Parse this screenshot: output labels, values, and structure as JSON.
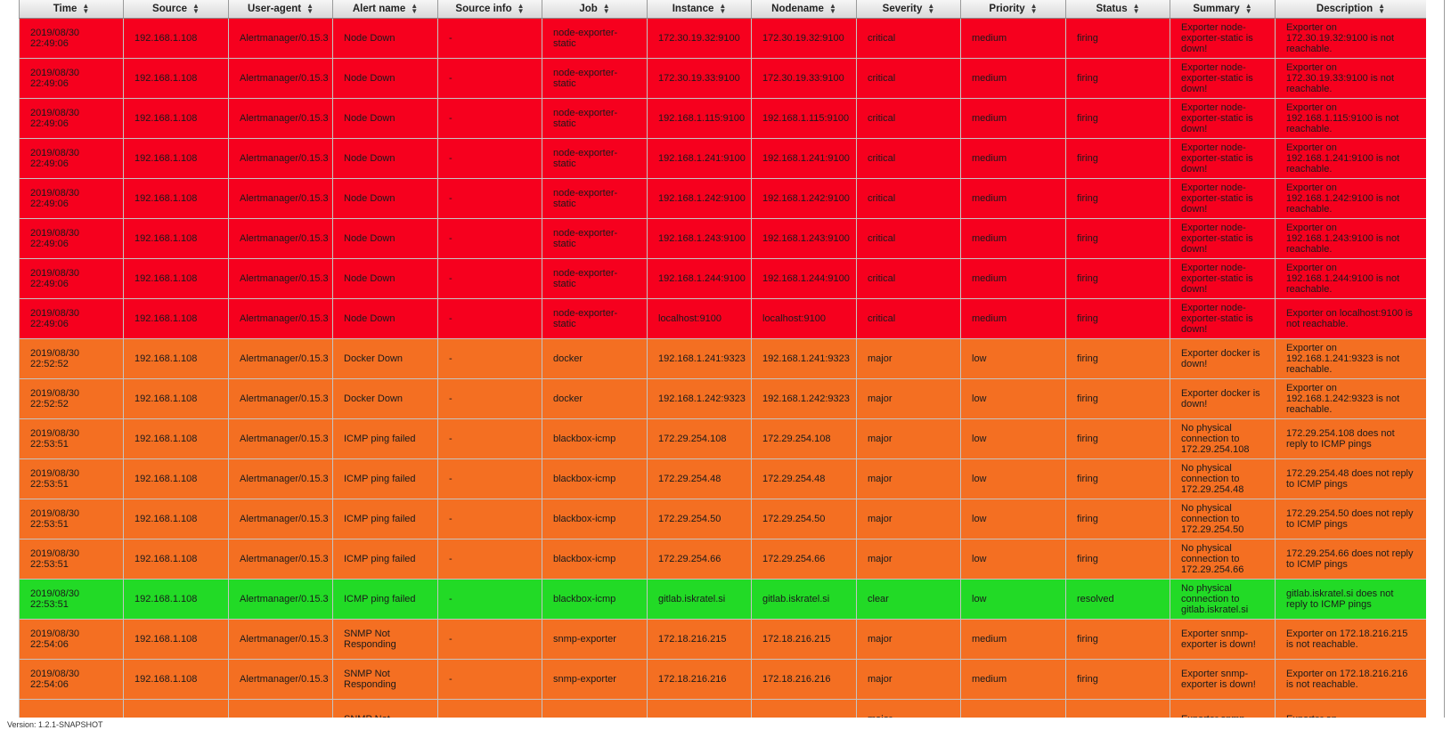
{
  "columns": [
    {
      "key": "time",
      "label": "Time"
    },
    {
      "key": "source",
      "label": "Source"
    },
    {
      "key": "user_agent",
      "label": "User-agent"
    },
    {
      "key": "alert_name",
      "label": "Alert name"
    },
    {
      "key": "source_info",
      "label": "Source info"
    },
    {
      "key": "job",
      "label": "Job"
    },
    {
      "key": "instance",
      "label": "Instance"
    },
    {
      "key": "nodename",
      "label": "Nodename"
    },
    {
      "key": "severity",
      "label": "Severity"
    },
    {
      "key": "priority",
      "label": "Priority"
    },
    {
      "key": "status",
      "label": "Status"
    },
    {
      "key": "summary",
      "label": "Summary"
    },
    {
      "key": "description",
      "label": "Description"
    }
  ],
  "severity_colors": {
    "critical": "#f6001e",
    "major": "#f46f22",
    "clear": "#22da26"
  },
  "rows": [
    {
      "time": "2019/08/30 22:49:06",
      "source": "192.168.1.108",
      "user_agent": "Alertmanager/0.15.3",
      "alert_name": "Node Down",
      "source_info": "-",
      "job": "node-exporter-static",
      "instance": "172.30.19.32:9100",
      "nodename": "172.30.19.32:9100",
      "severity": "critical",
      "priority": "medium",
      "status": "firing",
      "summary": "Exporter node-exporter-static is down!",
      "description": "Exporter on 172.30.19.32:9100 is not reachable."
    },
    {
      "time": "2019/08/30 22:49:06",
      "source": "192.168.1.108",
      "user_agent": "Alertmanager/0.15.3",
      "alert_name": "Node Down",
      "source_info": "-",
      "job": "node-exporter-static",
      "instance": "172.30.19.33:9100",
      "nodename": "172.30.19.33:9100",
      "severity": "critical",
      "priority": "medium",
      "status": "firing",
      "summary": "Exporter node-exporter-static is down!",
      "description": "Exporter on 172.30.19.33:9100 is not reachable."
    },
    {
      "time": "2019/08/30 22:49:06",
      "source": "192.168.1.108",
      "user_agent": "Alertmanager/0.15.3",
      "alert_name": "Node Down",
      "source_info": "-",
      "job": "node-exporter-static",
      "instance": "192.168.1.115:9100",
      "nodename": "192.168.1.115:9100",
      "severity": "critical",
      "priority": "medium",
      "status": "firing",
      "summary": "Exporter node-exporter-static is down!",
      "description": "Exporter on 192.168.1.115:9100 is not reachable."
    },
    {
      "time": "2019/08/30 22:49:06",
      "source": "192.168.1.108",
      "user_agent": "Alertmanager/0.15.3",
      "alert_name": "Node Down",
      "source_info": "-",
      "job": "node-exporter-static",
      "instance": "192.168.1.241:9100",
      "nodename": "192.168.1.241:9100",
      "severity": "critical",
      "priority": "medium",
      "status": "firing",
      "summary": "Exporter node-exporter-static is down!",
      "description": "Exporter on 192.168.1.241:9100 is not reachable."
    },
    {
      "time": "2019/08/30 22:49:06",
      "source": "192.168.1.108",
      "user_agent": "Alertmanager/0.15.3",
      "alert_name": "Node Down",
      "source_info": "-",
      "job": "node-exporter-static",
      "instance": "192.168.1.242:9100",
      "nodename": "192.168.1.242:9100",
      "severity": "critical",
      "priority": "medium",
      "status": "firing",
      "summary": "Exporter node-exporter-static is down!",
      "description": "Exporter on 192.168.1.242:9100 is not reachable."
    },
    {
      "time": "2019/08/30 22:49:06",
      "source": "192.168.1.108",
      "user_agent": "Alertmanager/0.15.3",
      "alert_name": "Node Down",
      "source_info": "-",
      "job": "node-exporter-static",
      "instance": "192.168.1.243:9100",
      "nodename": "192.168.1.243:9100",
      "severity": "critical",
      "priority": "medium",
      "status": "firing",
      "summary": "Exporter node-exporter-static is down!",
      "description": "Exporter on 192.168.1.243:9100 is not reachable."
    },
    {
      "time": "2019/08/30 22:49:06",
      "source": "192.168.1.108",
      "user_agent": "Alertmanager/0.15.3",
      "alert_name": "Node Down",
      "source_info": "-",
      "job": "node-exporter-static",
      "instance": "192.168.1.244:9100",
      "nodename": "192.168.1.244:9100",
      "severity": "critical",
      "priority": "medium",
      "status": "firing",
      "summary": "Exporter node-exporter-static is down!",
      "description": "Exporter on 192.168.1.244:9100 is not reachable."
    },
    {
      "time": "2019/08/30 22:49:06",
      "source": "192.168.1.108",
      "user_agent": "Alertmanager/0.15.3",
      "alert_name": "Node Down",
      "source_info": "-",
      "job": "node-exporter-static",
      "instance": "localhost:9100",
      "nodename": "localhost:9100",
      "severity": "critical",
      "priority": "medium",
      "status": "firing",
      "summary": "Exporter node-exporter-static is down!",
      "description": "Exporter on localhost:9100 is not reachable."
    },
    {
      "time": "2019/08/30 22:52:52",
      "source": "192.168.1.108",
      "user_agent": "Alertmanager/0.15.3",
      "alert_name": "Docker Down",
      "source_info": "-",
      "job": "docker",
      "instance": "192.168.1.241:9323",
      "nodename": "192.168.1.241:9323",
      "severity": "major",
      "priority": "low",
      "status": "firing",
      "summary": "Exporter docker is down!",
      "description": "Exporter on 192.168.1.241:9323 is not reachable."
    },
    {
      "time": "2019/08/30 22:52:52",
      "source": "192.168.1.108",
      "user_agent": "Alertmanager/0.15.3",
      "alert_name": "Docker Down",
      "source_info": "-",
      "job": "docker",
      "instance": "192.168.1.242:9323",
      "nodename": "192.168.1.242:9323",
      "severity": "major",
      "priority": "low",
      "status": "firing",
      "summary": "Exporter docker is down!",
      "description": "Exporter on 192.168.1.242:9323 is not reachable."
    },
    {
      "time": "2019/08/30 22:53:51",
      "source": "192.168.1.108",
      "user_agent": "Alertmanager/0.15.3",
      "alert_name": "ICMP ping failed",
      "source_info": "-",
      "job": "blackbox-icmp",
      "instance": "172.29.254.108",
      "nodename": "172.29.254.108",
      "severity": "major",
      "priority": "low",
      "status": "firing",
      "summary": "No physical connection to 172.29.254.108",
      "description": "172.29.254.108 does not reply to ICMP pings"
    },
    {
      "time": "2019/08/30 22:53:51",
      "source": "192.168.1.108",
      "user_agent": "Alertmanager/0.15.3",
      "alert_name": "ICMP ping failed",
      "source_info": "-",
      "job": "blackbox-icmp",
      "instance": "172.29.254.48",
      "nodename": "172.29.254.48",
      "severity": "major",
      "priority": "low",
      "status": "firing",
      "summary": "No physical connection to 172.29.254.48",
      "description": "172.29.254.48 does not reply to ICMP pings"
    },
    {
      "time": "2019/08/30 22:53:51",
      "source": "192.168.1.108",
      "user_agent": "Alertmanager/0.15.3",
      "alert_name": "ICMP ping failed",
      "source_info": "-",
      "job": "blackbox-icmp",
      "instance": "172.29.254.50",
      "nodename": "172.29.254.50",
      "severity": "major",
      "priority": "low",
      "status": "firing",
      "summary": "No physical connection to 172.29.254.50",
      "description": "172.29.254.50 does not reply to ICMP pings"
    },
    {
      "time": "2019/08/30 22:53:51",
      "source": "192.168.1.108",
      "user_agent": "Alertmanager/0.15.3",
      "alert_name": "ICMP ping failed",
      "source_info": "-",
      "job": "blackbox-icmp",
      "instance": "172.29.254.66",
      "nodename": "172.29.254.66",
      "severity": "major",
      "priority": "low",
      "status": "firing",
      "summary": "No physical connection to 172.29.254.66",
      "description": "172.29.254.66 does not reply to ICMP pings"
    },
    {
      "time": "2019/08/30 22:53:51",
      "source": "192.168.1.108",
      "user_agent": "Alertmanager/0.15.3",
      "alert_name": "ICMP ping failed",
      "source_info": "-",
      "job": "blackbox-icmp",
      "instance": "gitlab.iskratel.si",
      "nodename": "gitlab.iskratel.si",
      "severity": "clear",
      "priority": "low",
      "status": "resolved",
      "summary": "No physical connection to gitlab.iskratel.si",
      "description": "gitlab.iskratel.si does not reply to ICMP pings"
    },
    {
      "time": "2019/08/30 22:54:06",
      "source": "192.168.1.108",
      "user_agent": "Alertmanager/0.15.3",
      "alert_name": "SNMP Not Responding",
      "source_info": "-",
      "job": "snmp-exporter",
      "instance": "172.18.216.215",
      "nodename": "172.18.216.215",
      "severity": "major",
      "priority": "medium",
      "status": "firing",
      "summary": "Exporter snmp-exporter is down!",
      "description": "Exporter on 172.18.216.215 is not reachable."
    },
    {
      "time": "2019/08/30 22:54:06",
      "source": "192.168.1.108",
      "user_agent": "Alertmanager/0.15.3",
      "alert_name": "SNMP Not Responding",
      "source_info": "-",
      "job": "snmp-exporter",
      "instance": "172.18.216.216",
      "nodename": "172.18.216.216",
      "severity": "major",
      "priority": "medium",
      "status": "firing",
      "summary": "Exporter snmp-exporter is down!",
      "description": "Exporter on 172.18.216.216 is not reachable."
    },
    {
      "time": "",
      "source": "",
      "user_agent": "",
      "alert_name": "SNMP Not",
      "source_info": "",
      "job": "",
      "instance": "",
      "nodename": "",
      "severity": "major",
      "priority": "",
      "status": "",
      "summary": "Exporter snmp-",
      "description": "Exporter on"
    }
  ],
  "footer": {
    "version_text": "Version: 1.2.1-SNAPSHOT"
  }
}
